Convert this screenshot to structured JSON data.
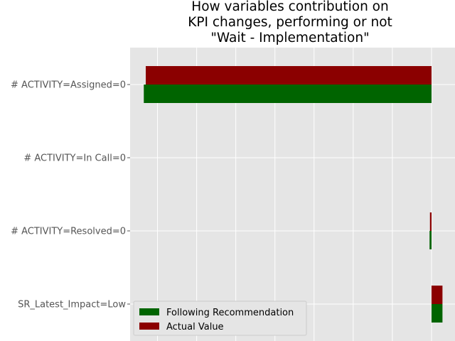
{
  "chart_data": {
    "type": "bar",
    "orientation": "horizontal",
    "title_lines": [
      "How variables contribution on",
      "KPI changes, performing or not",
      "\"Wait - Implementation\""
    ],
    "categories": [
      "# ACTIVITY=Assigned=0",
      "# ACTIVITY=In Call=0",
      "# ACTIVITY=Resolved=0",
      "SR_Latest_Impact=Low"
    ],
    "series": [
      {
        "name": "Following Recommendation",
        "color": "#006400",
        "values": [
          -0.735,
          0,
          -0.005,
          0.028
        ]
      },
      {
        "name": "Actual Value",
        "color": "#8b0000",
        "values": [
          -0.73,
          0,
          -0.004,
          0.028
        ]
      }
    ],
    "xlim": [
      -0.77,
      0.06
    ],
    "x_ticks": [
      -0.7,
      -0.6,
      -0.5,
      -0.4,
      -0.3,
      -0.2,
      -0.1,
      0.0
    ],
    "x_tick_labels_shown": false,
    "grid": true,
    "legend_position": "lower-left"
  }
}
